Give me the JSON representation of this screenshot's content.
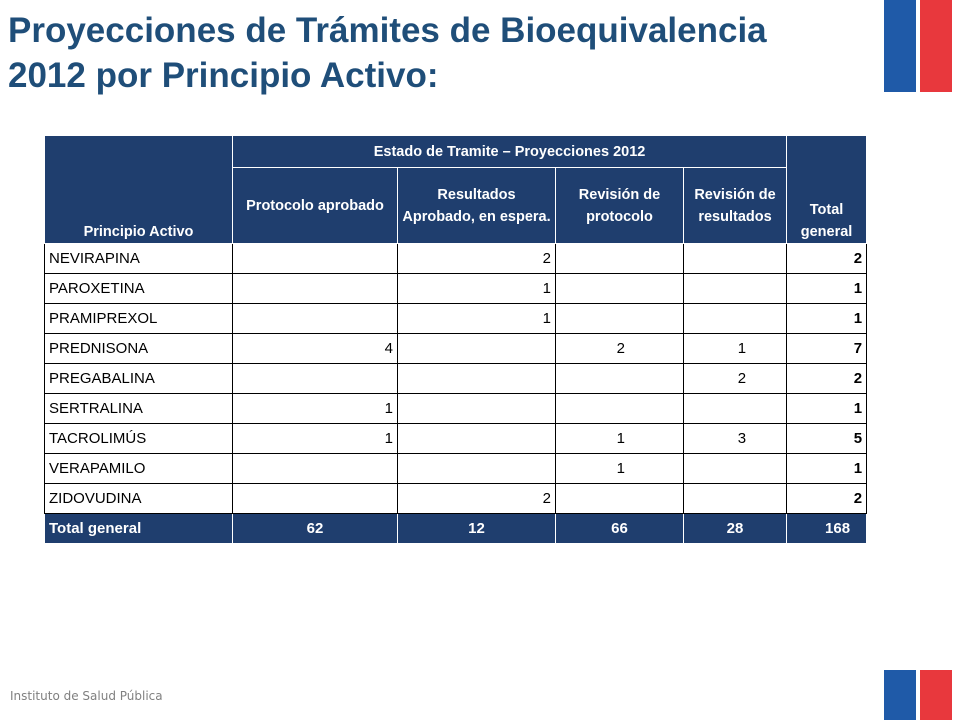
{
  "title": {
    "line1": "Proyecciones de Trámites de Bioequivalencia",
    "line2": "2012 por Principio Activo:"
  },
  "table": {
    "header": {
      "principio": "Principio Activo",
      "estado_group": "Estado de Tramite – Proyecciones 2012",
      "total": "Total general",
      "columns": [
        "Protocolo aprobado",
        "Resultados Aprobado, en espera.",
        "Revisión de protocolo",
        "Revisión de resultados"
      ]
    },
    "rows": [
      {
        "name": "NEVIRAPINA",
        "values": [
          "",
          "2",
          "",
          ""
        ],
        "total": "2"
      },
      {
        "name": "PAROXETINA",
        "values": [
          "",
          "1",
          "",
          ""
        ],
        "total": "1"
      },
      {
        "name": "PRAMIPREXOL",
        "values": [
          "",
          "1",
          "",
          ""
        ],
        "total": "1"
      },
      {
        "name": "PREDNISONA",
        "values": [
          "4",
          "",
          "2",
          "1"
        ],
        "total": "7"
      },
      {
        "name": "PREGABALINA",
        "values": [
          "",
          "",
          "",
          "2"
        ],
        "total": "2"
      },
      {
        "name": "SERTRALINA",
        "values": [
          "1",
          "",
          "",
          ""
        ],
        "total": "1"
      },
      {
        "name": "TACROLIMÚS",
        "values": [
          "1",
          "",
          "1",
          "3"
        ],
        "total": "5"
      },
      {
        "name": "VERAPAMILO",
        "values": [
          "",
          "",
          "1",
          ""
        ],
        "total": "1"
      },
      {
        "name": "ZIDOVUDINA",
        "values": [
          "",
          "2",
          "",
          ""
        ],
        "total": "2"
      }
    ],
    "total_row": {
      "label": "Total general",
      "values": [
        "62",
        "12",
        "66",
        "28"
      ],
      "total": "168"
    }
  },
  "footer": "Instituto de Salud Pública",
  "colors": {
    "title": "#1F4E79",
    "header_bg": "#1F3E6E",
    "flag_blue": "#1F5AA8",
    "flag_red": "#E8383D"
  }
}
